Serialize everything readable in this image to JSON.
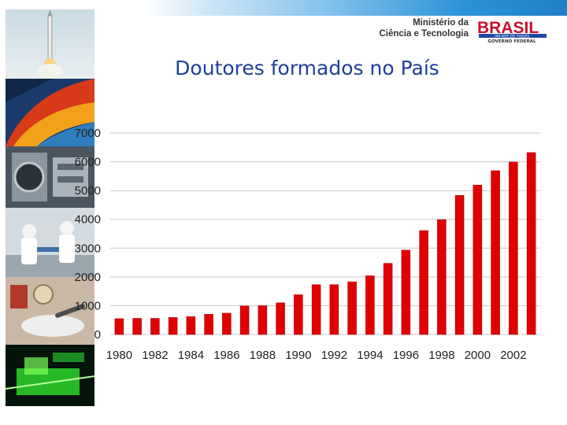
{
  "header": {
    "ministry_line1": "Ministério da",
    "ministry_line2": "Ciência e Tecnologia",
    "logo_word": "BRASIL",
    "logo_tagline": "UM PAÍS DE TODOS",
    "logo_gov": "GOVERNO FEDERAL"
  },
  "slide": {
    "title": "Doutores formados no País"
  },
  "colors": {
    "bar": "#e10000",
    "bar_edge": "#b00000",
    "title": "#1f3f9c",
    "grid": "#c8c8c8"
  },
  "sidebar_images": [
    "rocket-launch",
    "macaw-feathers",
    "lab-machinery",
    "lab-technicians",
    "lab-samples",
    "green-laser-device"
  ],
  "chart_data": {
    "type": "bar",
    "title": "",
    "xlabel": "",
    "ylabel": "",
    "ylim": [
      0,
      7000
    ],
    "yticks": [
      0,
      1000,
      2000,
      3000,
      4000,
      5000,
      6000,
      7000
    ],
    "grid": true,
    "categories": [
      "1980",
      "1981",
      "1982",
      "1983",
      "1984",
      "1985",
      "1986",
      "1987",
      "1988",
      "1989",
      "1990",
      "1991",
      "1992",
      "1993",
      "1994",
      "1995",
      "1996",
      "1997",
      "1998",
      "1999",
      "2000",
      "2001",
      "2002",
      "2003"
    ],
    "xtick_labels": [
      "1980",
      "1982",
      "1984",
      "1986",
      "1988",
      "1990",
      "1992",
      "1994",
      "1996",
      "1998",
      "2000",
      "2002"
    ],
    "values": [
      550,
      560,
      560,
      590,
      620,
      700,
      740,
      990,
      1000,
      1100,
      1380,
      1730,
      1730,
      1830,
      2040,
      2470,
      2930,
      3610,
      3990,
      4830,
      5190,
      5690,
      5990,
      6320
    ]
  }
}
